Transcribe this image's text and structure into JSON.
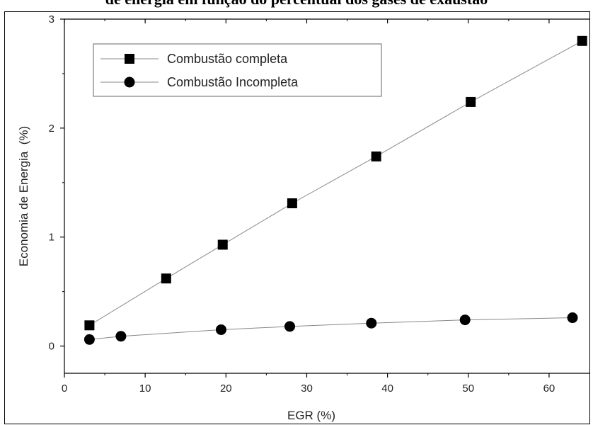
{
  "title": "de energia em função do percentual dos gases de exaustão",
  "chart_data": {
    "type": "line",
    "xlabel": "EGR (%)",
    "ylabel": "Economia de Energia  (%)",
    "xlim": [
      0,
      65
    ],
    "ylim": [
      -0.25,
      3.0
    ],
    "xticks": [
      0,
      10,
      20,
      30,
      40,
      50,
      60
    ],
    "yticks": [
      0,
      1,
      2,
      3
    ],
    "grid": false,
    "legend_position": "top-left",
    "series": [
      {
        "name": "Combustão completa",
        "marker": "square",
        "color": "#000000",
        "x": [
          3.1,
          12.6,
          19.6,
          28.2,
          38.6,
          50.3,
          64.1
        ],
        "y": [
          0.19,
          0.62,
          0.93,
          1.31,
          1.74,
          2.24,
          2.8
        ]
      },
      {
        "name": "Combustão Incompleta",
        "marker": "circle",
        "color": "#000000",
        "x": [
          3.1,
          7.0,
          19.4,
          27.9,
          38.0,
          49.6,
          62.9
        ],
        "y": [
          0.06,
          0.09,
          0.15,
          0.18,
          0.21,
          0.24,
          0.26
        ]
      }
    ]
  }
}
